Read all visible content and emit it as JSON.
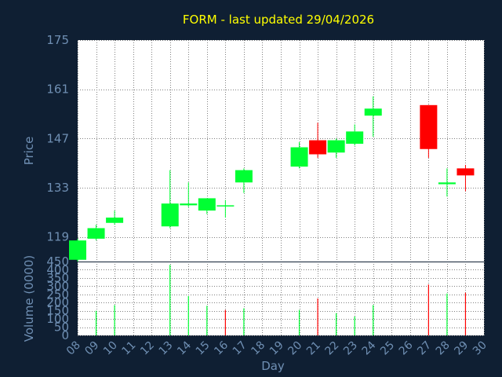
{
  "chart_data": {
    "type": "candlestick",
    "title": "FORM - last updated 29/04/2026",
    "ylabel": "Price",
    "volume_label": "Volume (0000)",
    "xlabel": "Day",
    "days": [
      "08",
      "09",
      "10",
      "11",
      "12",
      "13",
      "14",
      "15",
      "16",
      "17",
      "18",
      "19",
      "20",
      "21",
      "22",
      "23",
      "24",
      "25",
      "26",
      "27",
      "28",
      "29",
      "30"
    ],
    "price_ylim": [
      112,
      175
    ],
    "price_ticks": [
      "175",
      "161",
      "147",
      "133",
      "119"
    ],
    "price_tick_values": [
      175,
      161,
      147,
      133,
      119
    ],
    "volume_ylim": [
      0,
      450
    ],
    "volume_ticks": [
      "450",
      "400",
      "350",
      "300",
      "250",
      "200",
      "150",
      "100",
      "50",
      "0"
    ],
    "volume_tick_values": [
      450,
      400,
      350,
      300,
      250,
      200,
      150,
      100,
      50,
      0
    ],
    "colors": {
      "up": "#00ff33",
      "down": "#ff0000",
      "background": "#0f1f33",
      "plot": "#ffffff",
      "title": "#ffff00",
      "axis_text": "#6f8fb3",
      "grid": "#808080"
    },
    "grid": true,
    "candles": [
      {
        "day": "08",
        "open": 112.5,
        "high": 118.5,
        "low": 112.0,
        "close": 118.0
      },
      {
        "day": "09",
        "open": 118.5,
        "high": 122.5,
        "low": 118.0,
        "close": 121.5
      },
      {
        "day": "10",
        "open": 123.0,
        "high": 126.5,
        "low": 122.5,
        "close": 124.5
      },
      {
        "day": "13",
        "open": 122.0,
        "high": 138.0,
        "low": 121.5,
        "close": 128.5
      },
      {
        "day": "14",
        "open": 128.0,
        "high": 134.5,
        "low": 127.5,
        "close": 128.5
      },
      {
        "day": "15",
        "open": 126.5,
        "high": 130.0,
        "low": 125.5,
        "close": 130.0
      },
      {
        "day": "16",
        "open": 128.0,
        "high": 129.5,
        "low": 124.5,
        "close": 128.0
      },
      {
        "day": "17",
        "open": 134.5,
        "high": 138.5,
        "low": 131.5,
        "close": 138.0
      },
      {
        "day": "20",
        "open": 139.0,
        "high": 146.0,
        "low": 138.5,
        "close": 144.5
      },
      {
        "day": "21",
        "open": 146.5,
        "high": 151.5,
        "low": 141.5,
        "close": 142.5
      },
      {
        "day": "22",
        "open": 143.0,
        "high": 147.0,
        "low": 141.5,
        "close": 146.5
      },
      {
        "day": "23",
        "open": 145.5,
        "high": 151.0,
        "low": 145.0,
        "close": 149.0
      },
      {
        "day": "24",
        "open": 153.5,
        "high": 159.0,
        "low": 147.5,
        "close": 155.5
      },
      {
        "day": "27",
        "open": 156.5,
        "high": 156.5,
        "low": 141.5,
        "close": 144.0
      },
      {
        "day": "28",
        "open": 134.0,
        "high": 138.5,
        "low": 130.5,
        "close": 134.5
      },
      {
        "day": "29",
        "open": 138.5,
        "high": 139.5,
        "low": 132.0,
        "close": 136.5
      }
    ],
    "volume": [
      {
        "day": "08",
        "value": 0,
        "color": "up"
      },
      {
        "day": "09",
        "value": 150,
        "color": "up"
      },
      {
        "day": "10",
        "value": 185,
        "color": "up"
      },
      {
        "day": "13",
        "value": 430,
        "color": "up"
      },
      {
        "day": "14",
        "value": 240,
        "color": "up"
      },
      {
        "day": "15",
        "value": 180,
        "color": "up"
      },
      {
        "day": "16",
        "value": 155,
        "color": "down"
      },
      {
        "day": "17",
        "value": 165,
        "color": "up"
      },
      {
        "day": "20",
        "value": 155,
        "color": "up"
      },
      {
        "day": "21",
        "value": 225,
        "color": "down"
      },
      {
        "day": "22",
        "value": 135,
        "color": "up"
      },
      {
        "day": "23",
        "value": 115,
        "color": "up"
      },
      {
        "day": "24",
        "value": 185,
        "color": "up"
      },
      {
        "day": "27",
        "value": 310,
        "color": "down"
      },
      {
        "day": "28",
        "value": 255,
        "color": "up"
      },
      {
        "day": "29",
        "value": 260,
        "color": "down"
      }
    ]
  }
}
